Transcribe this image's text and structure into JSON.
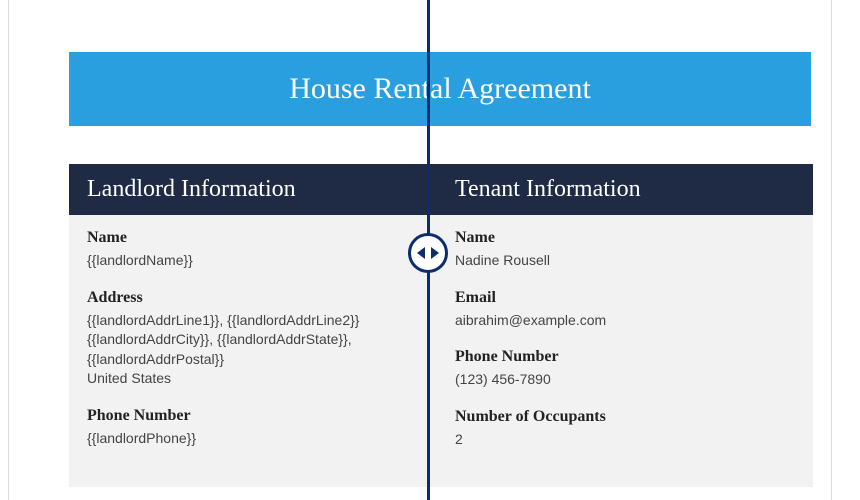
{
  "colors": {
    "title_banner_bg": "#2a9fe0",
    "title_banner_text": "#ffffff",
    "section_header_bg": "#1f2a44",
    "section_header_text": "#ffffff",
    "section_body_bg": "#f2f2f2",
    "divider": "#0a2d6e",
    "page_bg": "#ffffff",
    "page_border": "#dcdcdc"
  },
  "title": "House Rental Agreement",
  "landlord": {
    "section_title": "Landlord Information",
    "name_label": "Name",
    "name_value": "{{landlordName}}",
    "address_label": "Address",
    "address_line1": "{{landlordAddrLine1}}, {{landlordAddrLine2}}",
    "address_line2": "{{landlordAddrCity}}, {{landlordAddrState}},",
    "address_line3": "{{landlordAddrPostal}}",
    "address_line4": "United States",
    "phone_label": "Phone Number",
    "phone_value": "{{landlordPhone}}"
  },
  "tenant": {
    "section_title": "Tenant Information",
    "name_label": "Name",
    "name_value": "Nadine Rousell",
    "email_label": "Email",
    "email_value": "aibrahim@example.com",
    "phone_label": "Phone Number",
    "phone_value": "(123) 456-7890",
    "occupants_label": "Number of Occupants",
    "occupants_value": "2"
  }
}
